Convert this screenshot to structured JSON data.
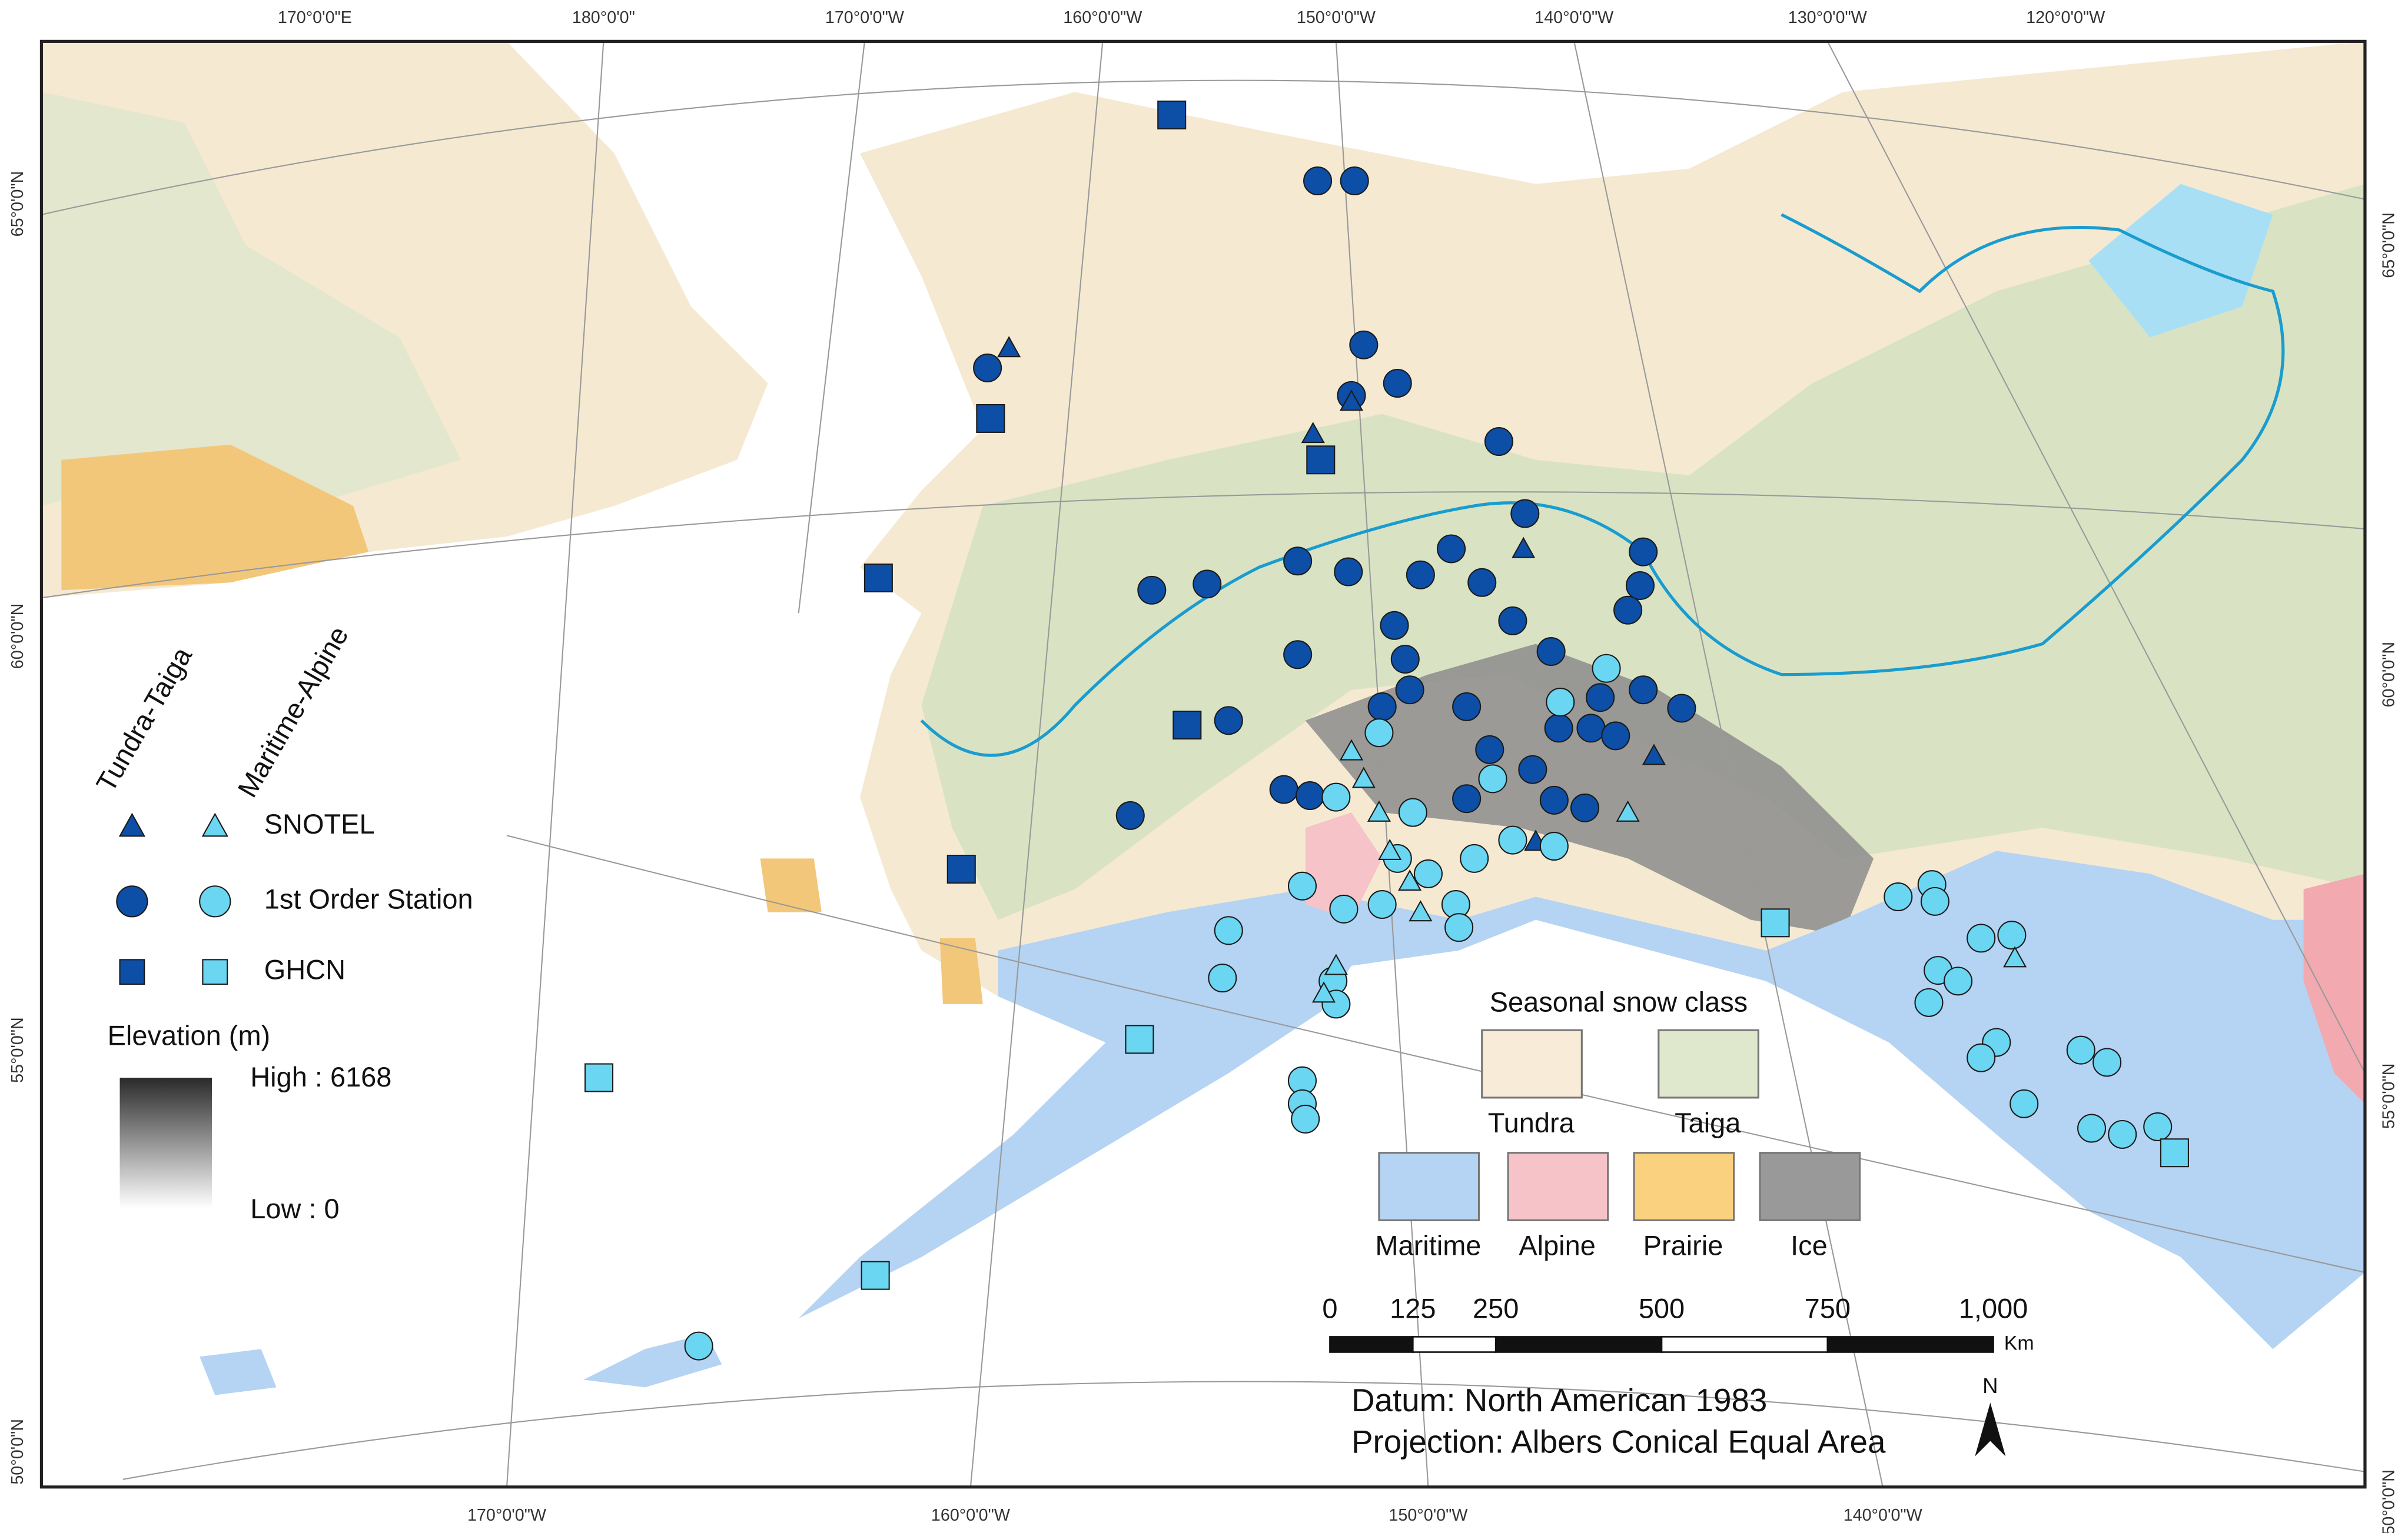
{
  "graticule": {
    "top": [
      "170°0'0\"E",
      "180°0'0\"",
      "170°0'0\"W",
      "160°0'0\"W",
      "150°0'0\"W",
      "140°0'0\"W",
      "130°0'0\"W",
      "120°0'0\"W"
    ],
    "bottom": [
      "170°0'0\"W",
      "160°0'0\"W",
      "150°0'0\"W",
      "140°0'0\"W"
    ],
    "left": [
      "65°0'0\"N",
      "60°0'0\"N",
      "55°0'0\"N",
      "50°0'0\"N"
    ],
    "right": [
      "65°0'0\"N",
      "60°0'0\"N",
      "55°0'0\"N",
      "50°0'0\"N"
    ]
  },
  "legend": {
    "group_labels": [
      "Tundra-Taiga",
      "Maritime-Alpine"
    ],
    "symbols": [
      "SNOTEL",
      "1st Order Station",
      "GHCN"
    ],
    "elevation": {
      "title": "Elevation (m)",
      "high": "High : 6168",
      "low": "Low : 0"
    },
    "snow_class": {
      "title": "Seasonal snow class",
      "classes": [
        "Tundra",
        "Taiga",
        "Maritime",
        "Alpine",
        "Prairie",
        "Ice"
      ]
    }
  },
  "scale_bar": {
    "labels": [
      "0",
      "125",
      "250",
      "500",
      "750",
      "1,000"
    ],
    "unit": "Km"
  },
  "notes": [
    "Datum: North American 1983",
    "Projection: Albers Conical Equal Area"
  ],
  "north_arrow": "N"
}
